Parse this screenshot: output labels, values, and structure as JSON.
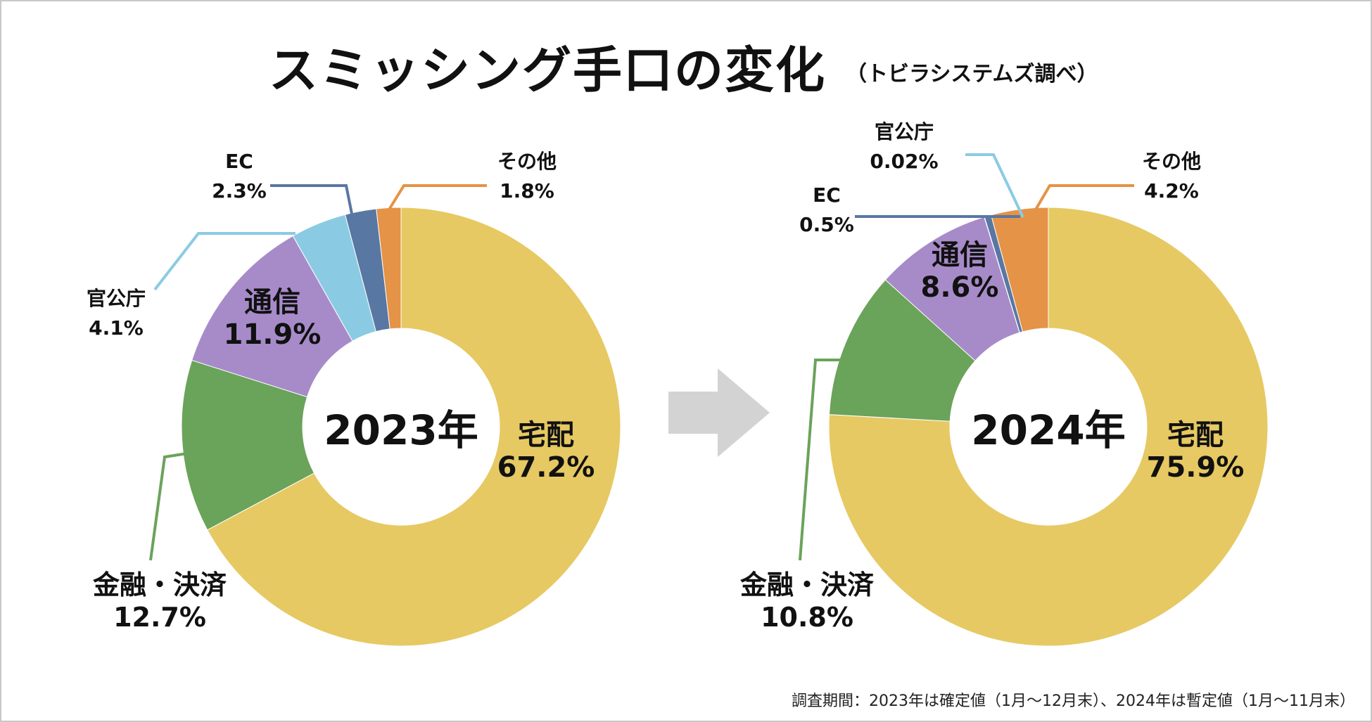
{
  "header": {
    "title": "スミッシング手口の変化",
    "subtitle": "（トビラシステムズ調べ）"
  },
  "footnote": "調査期間：2023年は確定値（1月〜12月末）、2024年は暫定値（1月〜11月末）",
  "colors": {
    "takuhai": "#E6C963",
    "kinyu": "#6AA35A",
    "tsushin": "#A78BC9",
    "kankocho": "#8ACBE3",
    "ec": "#5977A3",
    "sonota": "#E59346",
    "arrow": "#D3D3D3"
  },
  "chart_data": [
    {
      "type": "pie",
      "title": "2023年",
      "slices": [
        {
          "key": "takuhai",
          "label": "宅配",
          "value": 67.2,
          "text": "67.2%"
        },
        {
          "key": "kinyu",
          "label": "金融・決済",
          "value": 12.7,
          "text": "12.7%"
        },
        {
          "key": "tsushin",
          "label": "通信",
          "value": 11.9,
          "text": "11.9%"
        },
        {
          "key": "kankocho",
          "label": "官公庁",
          "value": 4.1,
          "text": "4.1%"
        },
        {
          "key": "ec",
          "label": "EC",
          "value": 2.3,
          "text": "2.3%"
        },
        {
          "key": "sonota",
          "label": "その他",
          "value": 1.8,
          "text": "1.8%"
        }
      ]
    },
    {
      "type": "pie",
      "title": "2024年",
      "slices": [
        {
          "key": "takuhai",
          "label": "宅配",
          "value": 75.9,
          "text": "75.9%"
        },
        {
          "key": "kinyu",
          "label": "金融・決済",
          "value": 10.8,
          "text": "10.8%"
        },
        {
          "key": "tsushin",
          "label": "通信",
          "value": 8.6,
          "text": "8.6%"
        },
        {
          "key": "ec",
          "label": "EC",
          "value": 0.5,
          "text": "0.5%"
        },
        {
          "key": "kankocho",
          "label": "官公庁",
          "value": 0.02,
          "text": "0.02%"
        },
        {
          "key": "sonota",
          "label": "その他",
          "value": 4.2,
          "text": "4.2%"
        }
      ]
    }
  ]
}
